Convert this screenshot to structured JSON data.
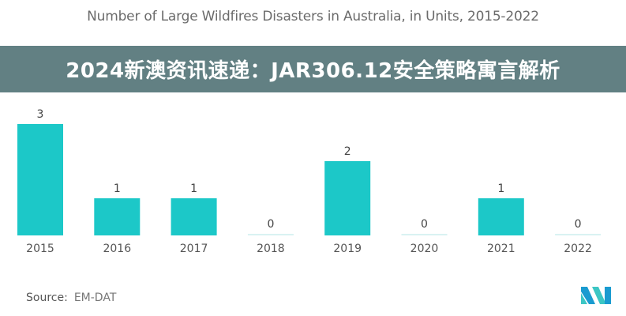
{
  "chart_data": {
    "type": "bar",
    "title": "Number of Large Wildfires Disasters in Australia, in Units, 2015-2022",
    "categories": [
      "2015",
      "2016",
      "2017",
      "2018",
      "2019",
      "2020",
      "2021",
      "2022"
    ],
    "values": [
      3,
      1,
      1,
      0,
      2,
      0,
      1,
      0
    ],
    "data_labels": [
      "3",
      "1",
      "1",
      "0",
      "2",
      "0",
      "1",
      "0"
    ],
    "xlabel": "",
    "ylabel": "",
    "ylim": [
      0,
      3
    ],
    "grid": false,
    "bar_color": "#1cc8c8",
    "zero_bar_color": "#d9f2f2"
  },
  "source": {
    "label": "Source:",
    "value": "EM-DAT"
  },
  "logo": {
    "colors": [
      "#1a9bd0",
      "#3cc6c4"
    ]
  },
  "banner": {
    "text": "2024新澳资讯速递：JAR306.12安全策略寓言解析",
    "color": "#40646a"
  }
}
